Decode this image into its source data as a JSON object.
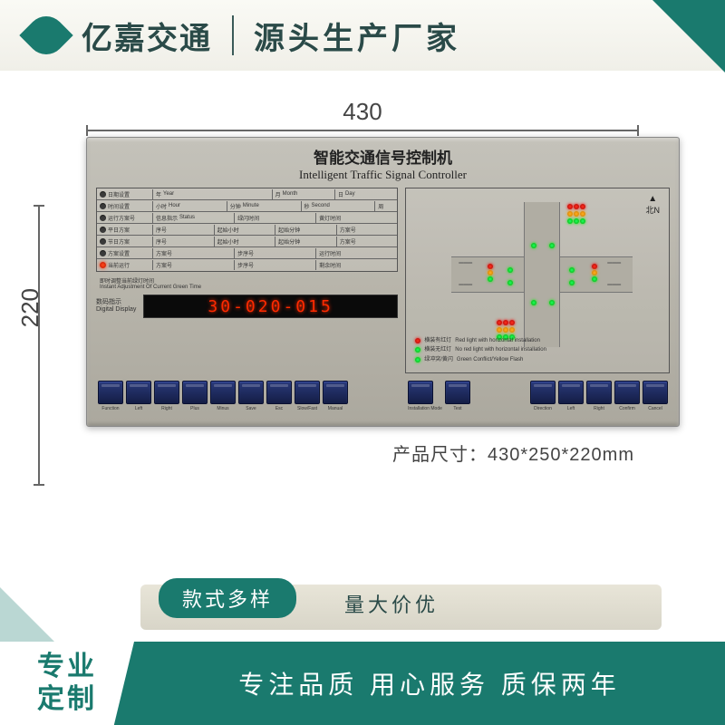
{
  "header": {
    "brand": "亿嘉交通",
    "tagline": "源头生产厂家"
  },
  "dims": {
    "width": "430",
    "height": "220"
  },
  "device": {
    "title_cn": "智能交通信号控制机",
    "title_en": "Intelligent Traffic Signal Controller",
    "watermark": "亿嘉交通",
    "compass": "北N",
    "table_left": [
      {
        "cn": "日期设置",
        "en": "Date Setting"
      },
      {
        "cn": "时间设置",
        "en": "Time Setting"
      },
      {
        "cn": "运行方案号",
        "en": "Schedule No."
      },
      {
        "cn": "平日方案",
        "en": "Weekday Plan"
      },
      {
        "cn": "节日方案",
        "en": "Holiday Plan"
      },
      {
        "cn": "方案设置",
        "en": "Schedule Setting"
      },
      {
        "cn": "当前运行",
        "en": "Current Run"
      }
    ],
    "table_top": [
      {
        "cn": "年",
        "en": "Year"
      },
      {
        "cn": "月",
        "en": "Month"
      },
      {
        "cn": "日",
        "en": "Day"
      },
      {
        "cn": "小时",
        "en": "Hour"
      },
      {
        "cn": "分钟",
        "en": "Minute"
      },
      {
        "cn": "秒",
        "en": "Second"
      },
      {
        "cn": "周",
        "en": "Week"
      }
    ],
    "status": {
      "cn": "信息指示",
      "en": "Status"
    },
    "adjust": {
      "cn": "即时调整当前绿灯时间",
      "en": "Instant Adjustment Of Current Green Time"
    },
    "display_label": {
      "cn": "数码指示",
      "en": "Digital Display"
    },
    "display_value": "30-020-015",
    "legend": [
      {
        "color": "#ff2a00",
        "cn": "横装有红灯",
        "en": "Red light with horizontal installation"
      },
      {
        "color": "#20ff60",
        "cn": "横装无红灯",
        "en": "No red light with horizontal installation"
      },
      {
        "color": "#20ff60",
        "cn": "绿冲突/黄闪",
        "en": "Green Conflict/Yellow Flash"
      }
    ],
    "buttons_left": [
      "Function",
      "Left",
      "Right",
      "Plus",
      "Minus",
      "Save",
      "Esc",
      "Slow/Fast",
      "Manual"
    ],
    "buttons_mid": [
      "Installation Mode",
      "Test"
    ],
    "buttons_right": [
      "Direction",
      "Left",
      "Right",
      "Confirm",
      "Cancel"
    ]
  },
  "size_text": "产品尺寸：430*250*220mm",
  "footer": {
    "pill": "款式多样",
    "sub": "量大价优",
    "badge_l1": "专业",
    "badge_l2": "定制",
    "main": "专注品质 用心服务 质保两年"
  }
}
